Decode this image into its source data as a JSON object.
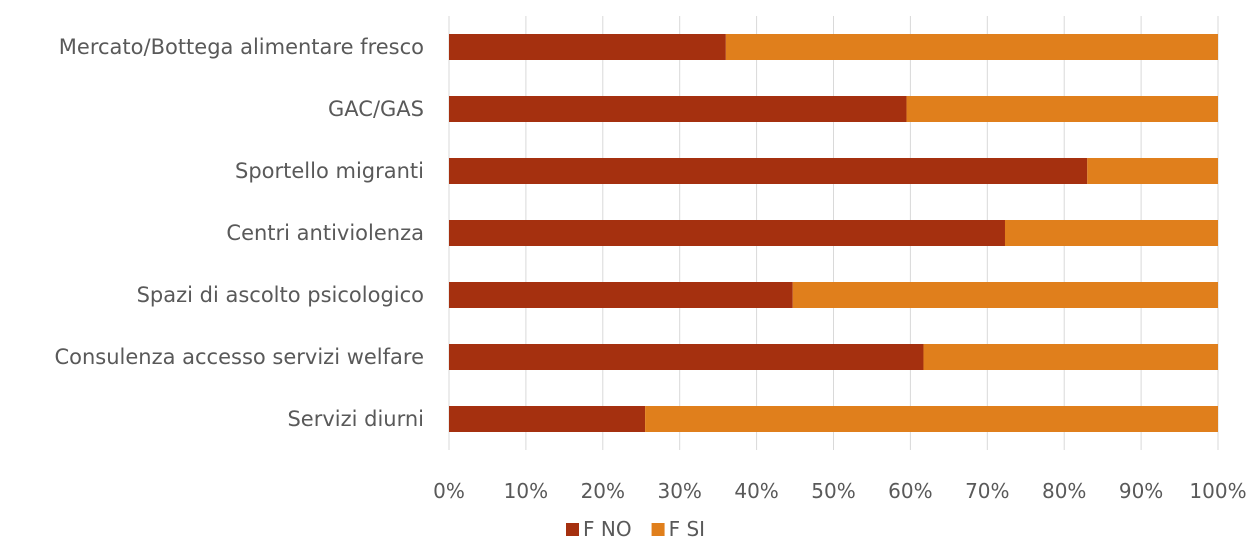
{
  "chart_data": {
    "type": "bar",
    "orientation": "horizontal",
    "stacked": "percent",
    "categories": [
      "Mercato/Bottega alimentare fresco",
      "GAC/GAS",
      "Sportello migranti",
      "Centri antiviolenza",
      "Spazi di ascolto psicologico",
      "Consulenza accesso servizi welfare",
      "Servizi diurni"
    ],
    "series": [
      {
        "name": "F NO",
        "color": "#A5300F",
        "values": [
          36,
          59.5,
          83,
          72.3,
          44.7,
          61.7,
          25.5
        ]
      },
      {
        "name": "F SI",
        "color": "#E07F1C",
        "values": [
          64,
          40.5,
          17,
          27.7,
          55.3,
          38.3,
          74.5
        ]
      }
    ],
    "x_ticks": [
      "0%",
      "10%",
      "20%",
      "30%",
      "40%",
      "50%",
      "60%",
      "70%",
      "80%",
      "90%",
      "100%"
    ],
    "xlim": [
      0,
      100
    ],
    "grid": "vertical",
    "legend": "bottom",
    "title": "",
    "xlabel": "",
    "ylabel": ""
  }
}
